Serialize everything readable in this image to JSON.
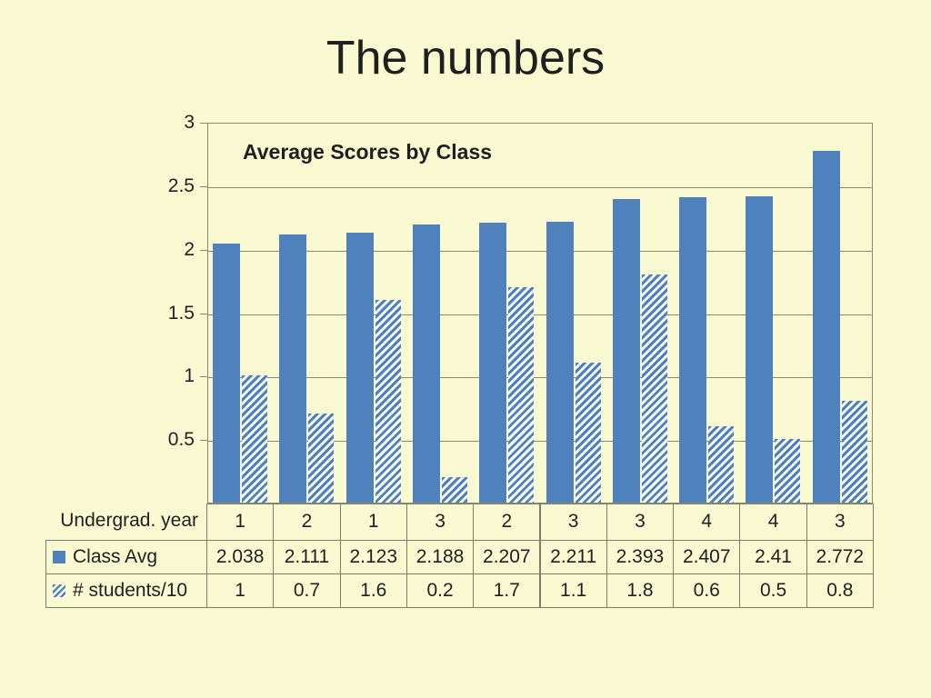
{
  "slide": {
    "title": "The numbers",
    "background": "#FAFAD2"
  },
  "chart_data": {
    "type": "bar",
    "title": "Average Scores by Class",
    "x_axis_label": "Undergrad. year",
    "categories": [
      "1",
      "2",
      "1",
      "3",
      "2",
      "3",
      "3",
      "4",
      "4",
      "3"
    ],
    "series": [
      {
        "name": "Class Avg",
        "pattern": "solid",
        "values": [
          2.038,
          2.111,
          2.123,
          2.188,
          2.207,
          2.211,
          2.393,
          2.407,
          2.41,
          2.772
        ]
      },
      {
        "name": "# students/10",
        "pattern": "hatched",
        "values": [
          1,
          0.7,
          1.6,
          0.2,
          1.7,
          1.1,
          1.8,
          0.6,
          0.5,
          0.8
        ]
      }
    ],
    "ylim": [
      0,
      3
    ],
    "yticks": [
      "0.5",
      "1",
      "1.5",
      "2",
      "2.5",
      "3"
    ],
    "grid": true,
    "legend_position": "table-rows-left",
    "colors": {
      "bar_blue": "#4F81BD",
      "hatch_background": "#FFFFFF",
      "slide_background": "#FAFAD2",
      "gridline": "#8A8A72",
      "table_border": "#7E7E68",
      "text": "#1F1F1F"
    }
  }
}
